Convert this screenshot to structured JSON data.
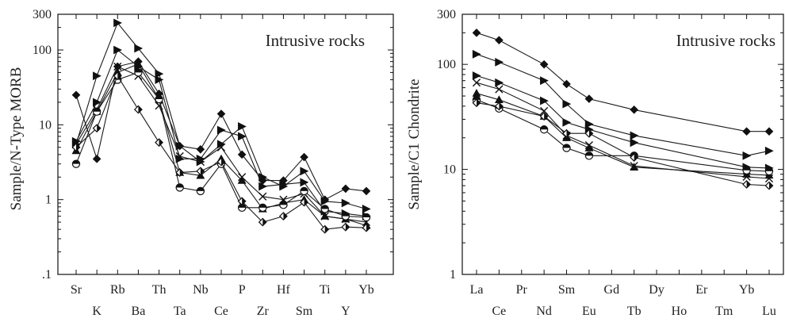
{
  "chart_data": [
    {
      "type": "line",
      "title": "Intrusive rocks",
      "ylabel": "Sample/N-Type MORB",
      "xlabel": "",
      "yscale": "log",
      "ylim": [
        0.1,
        300
      ],
      "yticks": [
        {
          "value": 0.1,
          "label": ".1"
        },
        {
          "value": 1,
          "label": "1"
        },
        {
          "value": 10,
          "label": "10"
        },
        {
          "value": 100,
          "label": "100"
        },
        {
          "value": 300,
          "label": "300"
        }
      ],
      "grid": false,
      "categories": [
        "Sr",
        "K",
        "Rb",
        "Ba",
        "Th",
        "Ta",
        "Nb",
        "Ce",
        "P",
        "Zr",
        "Hf",
        "Sm",
        "Ti",
        "Y",
        "Yb"
      ],
      "series": [
        {
          "marker": "triangle-right",
          "values": [
            5.5,
            45,
            230,
            105,
            48,
            5.2,
            3.2,
            5.5,
            9.5,
            2.0,
            1.5,
            2.4,
            0.95,
            0.9,
            0.75
          ]
        },
        {
          "marker": "triangle-right",
          "values": [
            6.0,
            20,
            100,
            60,
            40,
            3.5,
            3.5,
            8.5,
            7.0,
            1.5,
            1.6,
            1.7,
            0.7,
            0.65,
            0.6
          ]
        },
        {
          "marker": "diamond",
          "values": [
            25,
            3.5,
            60,
            70,
            26,
            5.2,
            4.7,
            14,
            4.0,
            1.8,
            1.8,
            3.7,
            1.0,
            1.4,
            1.3
          ]
        },
        {
          "marker": "cross",
          "values": [
            5.5,
            16,
            60,
            45,
            18,
            3.8,
            3.2,
            5.0,
            2.0,
            1.1,
            1.0,
            1.2,
            0.6,
            0.55,
            0.5
          ]
        },
        {
          "marker": "triangle-up",
          "values": [
            4.5,
            15,
            50,
            65,
            22,
            2.3,
            2.1,
            3.5,
            1.8,
            0.75,
            0.9,
            1.0,
            0.6,
            0.55,
            0.45
          ]
        },
        {
          "marker": "half-circle",
          "values": [
            3.0,
            15,
            40,
            50,
            22,
            1.45,
            1.3,
            3.0,
            0.78,
            0.78,
            0.85,
            1.3,
            0.75,
            0.6,
            0.58
          ]
        },
        {
          "marker": "half-diamond",
          "values": [
            5.0,
            9.0,
            45,
            16,
            5.8,
            2.3,
            2.4,
            3.2,
            0.95,
            0.5,
            0.6,
            0.92,
            0.4,
            0.43,
            0.42
          ]
        }
      ]
    },
    {
      "type": "line",
      "title": "Intrusive rocks",
      "ylabel": "Sample/C1 Chondrite",
      "xlabel": "",
      "yscale": "log",
      "ylim": [
        1,
        300
      ],
      "yticks": [
        {
          "value": 1,
          "label": "1"
        },
        {
          "value": 10,
          "label": "10"
        },
        {
          "value": 100,
          "label": "100"
        },
        {
          "value": 300,
          "label": "300"
        }
      ],
      "grid": false,
      "categories": [
        "La",
        "Ce",
        "Pr",
        "Nd",
        "Sm",
        "Eu",
        "Gd",
        "Tb",
        "Dy",
        "Ho",
        "Er",
        "Tm",
        "Yb",
        "Lu"
      ],
      "series": [
        {
          "marker": "diamond",
          "points": [
            [
              "La",
              200
            ],
            [
              "Ce",
              170
            ],
            [
              "Nd",
              100
            ],
            [
              "Sm",
              65
            ],
            [
              "Eu",
              47
            ],
            [
              "Tb",
              37
            ],
            [
              "Yb",
              23
            ],
            [
              "Lu",
              23
            ]
          ]
        },
        {
          "marker": "triangle-right",
          "points": [
            [
              "La",
              125
            ],
            [
              "Ce",
              105
            ],
            [
              "Nd",
              70
            ],
            [
              "Sm",
              42
            ],
            [
              "Eu",
              27
            ],
            [
              "Tb",
              21
            ],
            [
              "Yb",
              13.5
            ],
            [
              "Lu",
              15
            ]
          ]
        },
        {
          "marker": "triangle-right",
          "points": [
            [
              "La",
              78
            ],
            [
              "Ce",
              67
            ],
            [
              "Nd",
              45
            ],
            [
              "Sm",
              28
            ],
            [
              "Eu",
              24
            ],
            [
              "Tb",
              18
            ],
            [
              "Yb",
              10.5
            ],
            [
              "Lu",
              10.3
            ]
          ]
        },
        {
          "marker": "cross",
          "points": [
            [
              "La",
              67
            ],
            [
              "Ce",
              58
            ],
            [
              "Nd",
              36
            ],
            [
              "Sm",
              21
            ],
            [
              "Eu",
              17
            ],
            [
              "Tb",
              10.8
            ],
            [
              "Yb",
              8.5
            ],
            [
              "Lu",
              8.2
            ]
          ]
        },
        {
          "marker": "triangle-up",
          "points": [
            [
              "La",
              53
            ],
            [
              "Ce",
              46
            ],
            [
              "Nd",
              32
            ],
            [
              "Sm",
              20
            ],
            [
              "Eu",
              16
            ],
            [
              "Tb",
              10.5
            ],
            [
              "Yb",
              9.0
            ],
            [
              "Lu",
              8.8
            ]
          ]
        },
        {
          "marker": "half-circle",
          "points": [
            [
              "La",
              46
            ],
            [
              "Ce",
              38
            ],
            [
              "Nd",
              24
            ],
            [
              "Sm",
              16
            ],
            [
              "Eu",
              13.5
            ],
            [
              "Tb",
              13.5
            ],
            [
              "Yb",
              9.8
            ],
            [
              "Lu",
              9.6
            ]
          ]
        },
        {
          "marker": "half-diamond",
          "points": [
            [
              "La",
              43
            ],
            [
              "Ce",
              40
            ],
            [
              "Nd",
              32
            ],
            [
              "Sm",
              22
            ],
            [
              "Eu",
              22
            ],
            [
              "Tb",
              13
            ],
            [
              "Yb",
              7.2
            ],
            [
              "Lu",
              7.0
            ]
          ]
        }
      ]
    }
  ]
}
